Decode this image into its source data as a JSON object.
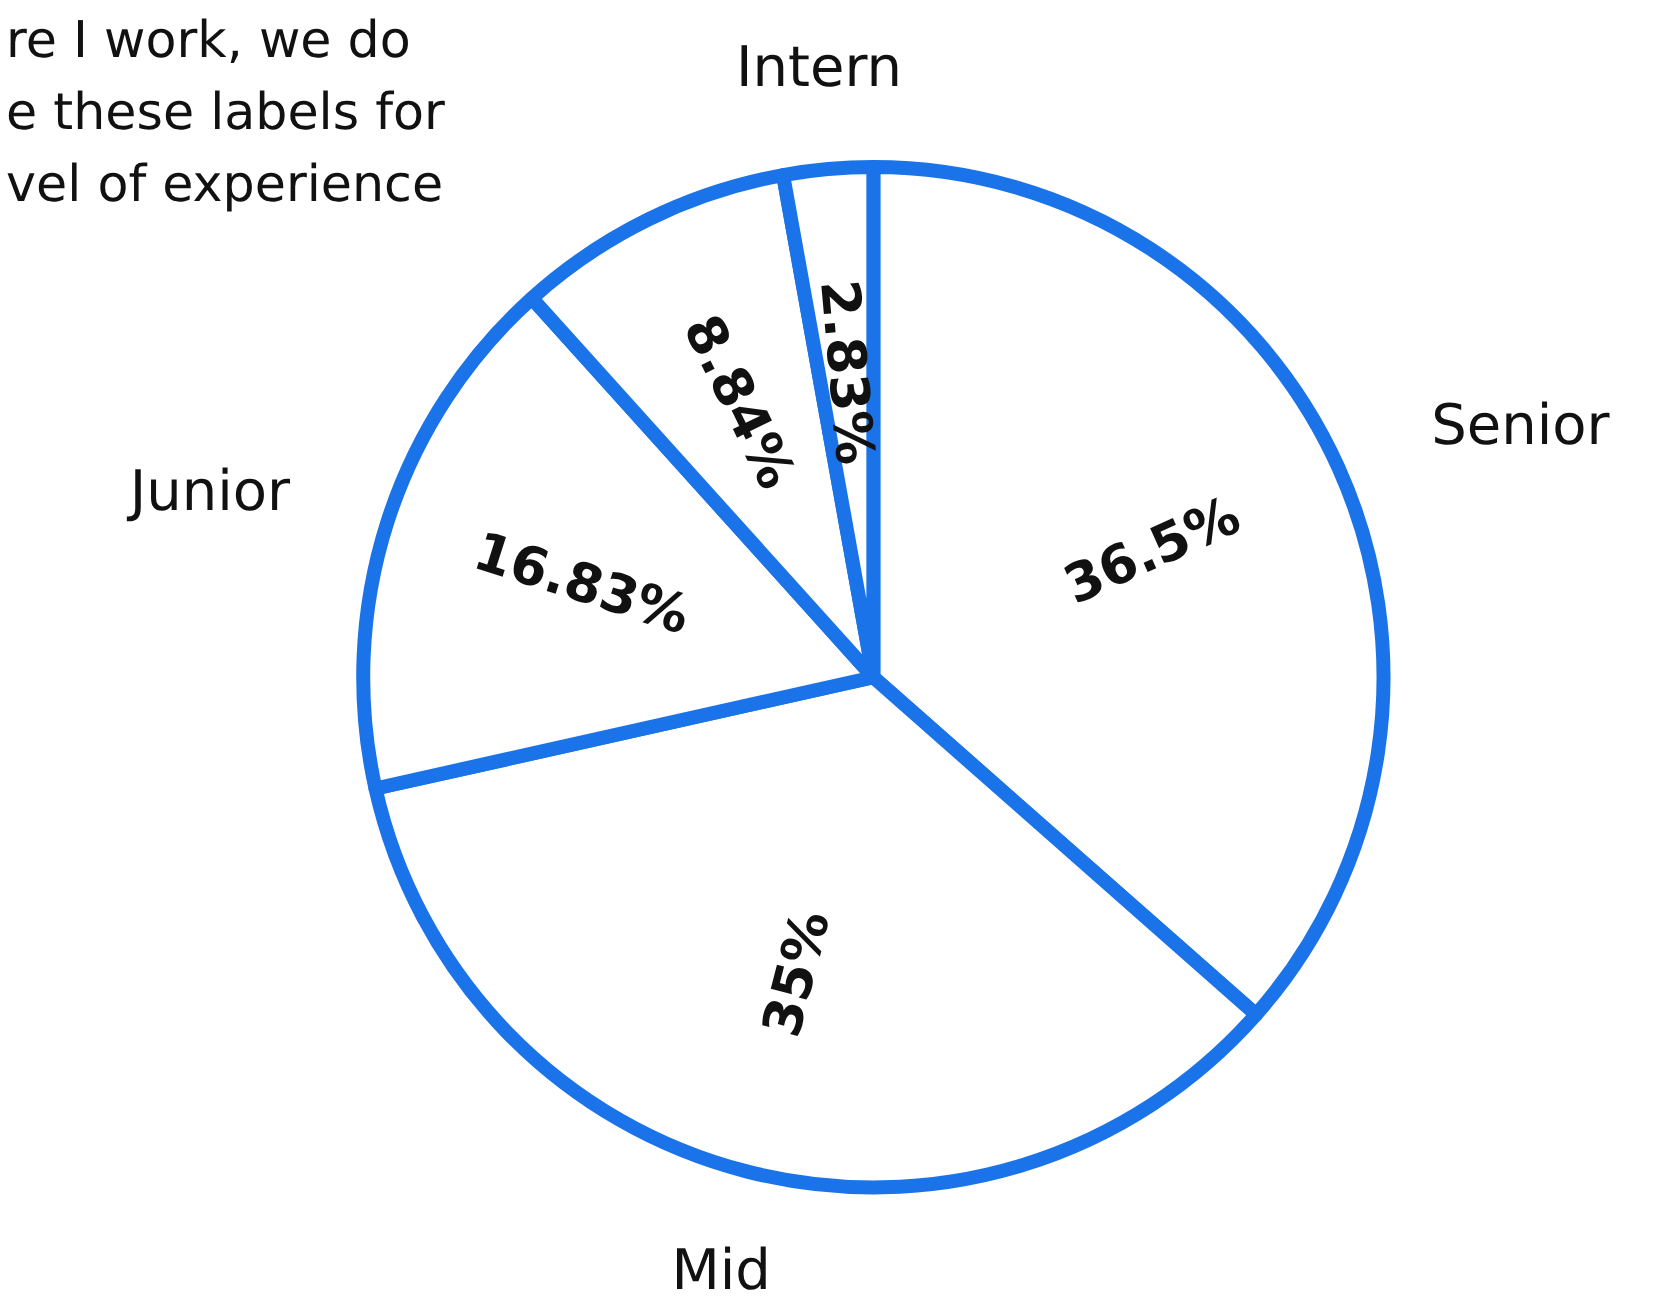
{
  "chart_data": {
    "type": "pie",
    "categories": [
      "Senior",
      "Mid",
      "Junior",
      null,
      "Intern"
    ],
    "values": [
      36.5,
      35,
      16.83,
      8.84,
      2.83
    ],
    "value_labels": [
      "36.5%",
      "35%",
      "16.83%",
      "8.84%",
      "2.83%"
    ],
    "colors": [
      "#ffffff",
      "#ffffff",
      "#ffffff",
      "#ffffff",
      "#ffffff"
    ],
    "annotations": [
      "re I work, we do\ne these labels for\nvel of experience"
    ]
  }
}
